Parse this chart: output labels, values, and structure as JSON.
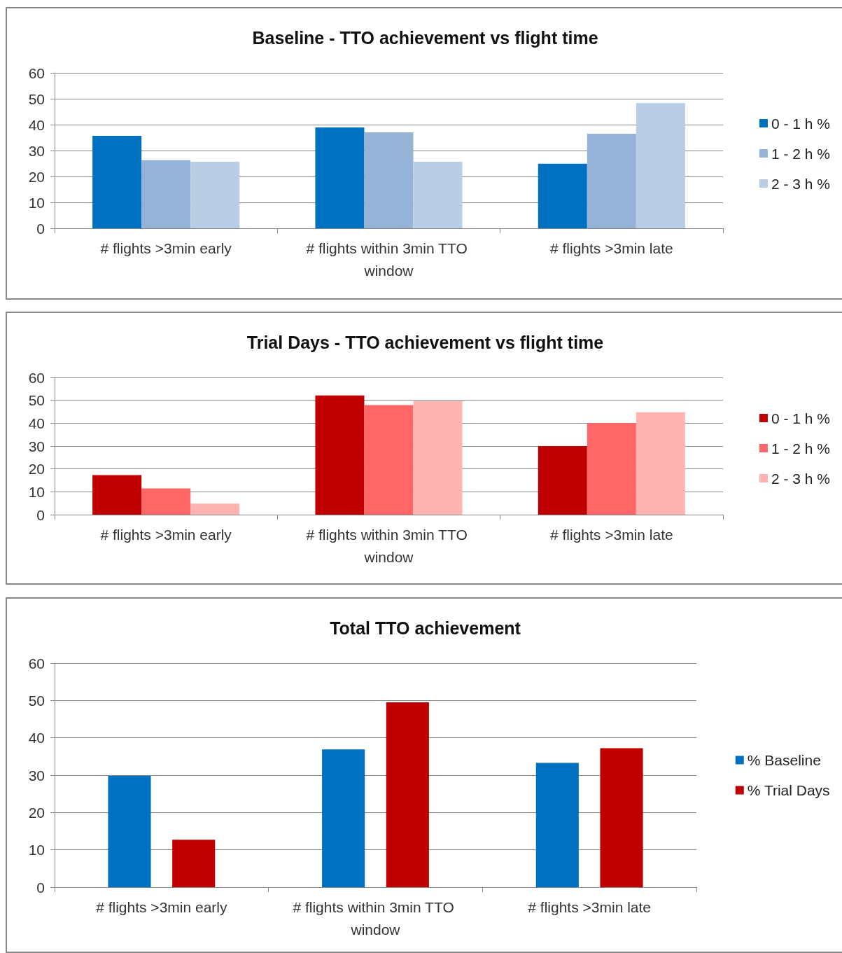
{
  "chart_data": [
    {
      "type": "bar",
      "title": "Baseline - TTO achievement vs flight time",
      "categories": [
        "# flights >3min early",
        "# flights within 3min TTO window",
        "# flights >3min late"
      ],
      "series": [
        {
          "name": "0 - 1 h %",
          "color": "#0070c0",
          "values": [
            35.7,
            38.9,
            24.9
          ]
        },
        {
          "name": "1 - 2 h %",
          "color": "#95b3d7",
          "values": [
            26.3,
            37,
            36.5
          ]
        },
        {
          "name": "2 - 3 h %",
          "color": "#b9cde5",
          "values": [
            25.7,
            25.7,
            48.3
          ]
        }
      ],
      "ylim": [
        0,
        60
      ],
      "yticks": [
        0,
        10,
        20,
        30,
        40,
        50,
        60
      ],
      "grid": "y",
      "legend": "right"
    },
    {
      "type": "bar",
      "title": "Trial Days - TTO achievement vs flight time",
      "categories": [
        "# flights >3min early",
        "# flights within 3min TTO window",
        "# flights >3min late"
      ],
      "series": [
        {
          "name": "0 - 1 h %",
          "color": "#c00000",
          "values": [
            17.3,
            52.1,
            30
          ]
        },
        {
          "name": "1 - 2 h %",
          "color": "#ff6666",
          "values": [
            11.5,
            47.9,
            40
          ]
        },
        {
          "name": "2 - 3 h %",
          "color": "#ffb3b3",
          "values": [
            4.8,
            49.7,
            44.8
          ]
        }
      ],
      "ylim": [
        0,
        60
      ],
      "yticks": [
        0,
        10,
        20,
        30,
        40,
        50,
        60
      ],
      "grid": "y",
      "legend": "right"
    },
    {
      "type": "bar",
      "title": "Total TTO achievement",
      "categories": [
        "# flights >3min early",
        "# flights within 3min TTO window",
        "# flights >3min late"
      ],
      "series": [
        {
          "name": "% Baseline",
          "color": "#0070c0",
          "values": [
            29.8,
            36.9,
            33.3
          ]
        },
        {
          "name": "% Trial Days",
          "color": "#c00000",
          "values": [
            12.7,
            49.5,
            37.2
          ]
        }
      ],
      "ylim": [
        0,
        60
      ],
      "yticks": [
        0,
        10,
        20,
        30,
        40,
        50,
        60
      ],
      "grid": "y",
      "legend": "right"
    }
  ]
}
